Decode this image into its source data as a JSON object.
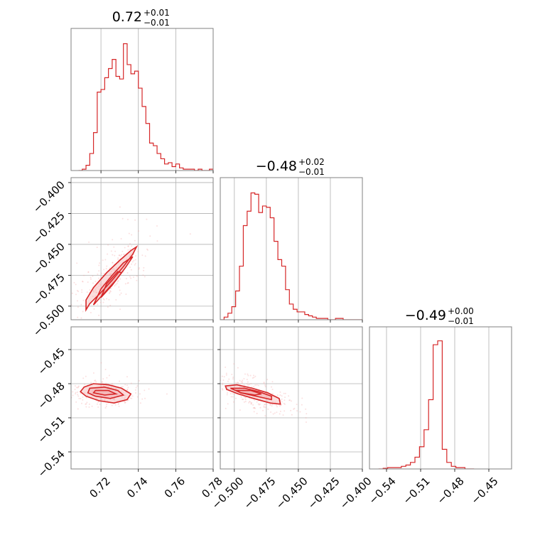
{
  "figure": {
    "type": "corner-plot",
    "colors": {
      "series": "#d62728",
      "contour_fill": "#f3b3b4",
      "scatter": "#f4a6a7",
      "grid": "#b0b0b0",
      "frame": "#808080"
    },
    "panels": {
      "p1": {
        "title_value": "0.72",
        "title_upper": "+0.01",
        "title_lower": "−0.01"
      },
      "p2": {
        "title_value": "−0.48",
        "title_upper": "+0.02",
        "title_lower": "−0.01"
      },
      "p3": {
        "title_value": "−0.49",
        "title_upper": "+0.00",
        "title_lower": "−0.01"
      }
    }
  },
  "chart_data": [
    {
      "type": "histogram",
      "panel": "p1",
      "x_ticks": [
        0.72,
        0.74,
        0.76,
        0.78
      ],
      "xlim": [
        0.704,
        0.78
      ],
      "grid": true,
      "bins": [
        0.708,
        0.71,
        0.712,
        0.714,
        0.716,
        0.718,
        0.72,
        0.722,
        0.724,
        0.726,
        0.728,
        0.73,
        0.732,
        0.734,
        0.736,
        0.738,
        0.74,
        0.742,
        0.744,
        0.746,
        0.748,
        0.75,
        0.752,
        0.754,
        0.756,
        0.758,
        0.76,
        0.762,
        0.764,
        0.766,
        0.768,
        0.77,
        0.772,
        0.774,
        0.776,
        0.778,
        0.78
      ],
      "counts": [
        0,
        0.01,
        0.04,
        0.13,
        0.29,
        0.6,
        0.62,
        0.71,
        0.78,
        0.85,
        0.72,
        0.7,
        0.97,
        0.81,
        0.74,
        0.76,
        0.63,
        0.49,
        0.36,
        0.21,
        0.19,
        0.13,
        0.09,
        0.05,
        0.06,
        0.03,
        0.05,
        0.02,
        0.01,
        0.01,
        0.01,
        0.0,
        0.01,
        0.0,
        0.0,
        0.01,
        0.0
      ]
    },
    {
      "type": "histogram",
      "panel": "p2",
      "x_ticks": [
        -0.5,
        -0.475,
        -0.45,
        -0.425,
        -0.4
      ],
      "x_tick_labels": [
        "−0.500",
        "−0.475",
        "−0.450",
        "−0.425",
        "−0.400"
      ],
      "xlim": [
        -0.511,
        -0.4
      ],
      "grid": true,
      "bins": [
        -0.511,
        -0.508,
        -0.505,
        -0.502,
        -0.499,
        -0.496,
        -0.493,
        -0.49,
        -0.487,
        -0.484,
        -0.481,
        -0.478,
        -0.475,
        -0.472,
        -0.469,
        -0.466,
        -0.463,
        -0.46,
        -0.457,
        -0.454,
        -0.451,
        -0.448,
        -0.445,
        -0.442,
        -0.439,
        -0.436,
        -0.433,
        -0.43,
        -0.427,
        -0.424,
        -0.421,
        -0.418,
        -0.415,
        -0.412,
        -0.409,
        -0.406,
        -0.403,
        -0.4
      ],
      "counts": [
        0,
        0.02,
        0.05,
        0.1,
        0.22,
        0.41,
        0.72,
        0.83,
        0.97,
        0.96,
        0.82,
        0.87,
        0.86,
        0.78,
        0.6,
        0.46,
        0.41,
        0.23,
        0.12,
        0.08,
        0.06,
        0.06,
        0.04,
        0.03,
        0.02,
        0.01,
        0.01,
        0.01,
        0.0,
        0.0,
        0.01,
        0.01,
        0.0,
        0.0,
        0.0,
        0.0,
        0.0
      ]
    },
    {
      "type": "histogram",
      "panel": "p3",
      "x_ticks": [
        -0.54,
        -0.51,
        -0.48,
        -0.45
      ],
      "x_tick_labels": [
        "−0.54",
        "−0.51",
        "−0.48",
        "−0.45"
      ],
      "xlim": [
        -0.555,
        -0.43
      ],
      "grid": true,
      "bins": [
        -0.547,
        -0.543,
        -0.539,
        -0.535,
        -0.531,
        -0.527,
        -0.523,
        -0.519,
        -0.515,
        -0.511,
        -0.507,
        -0.503,
        -0.499,
        -0.495,
        -0.491,
        -0.487,
        -0.483,
        -0.479,
        -0.475,
        -0.471,
        -0.467,
        -0.463
      ],
      "counts": [
        0,
        0.005,
        0.01,
        0.01,
        0.01,
        0.02,
        0.03,
        0.05,
        0.09,
        0.17,
        0.3,
        0.53,
        0.95,
        0.98,
        0.15,
        0.05,
        0.02,
        0.01,
        0.01,
        0.0,
        0.0,
        0.0
      ]
    },
    {
      "type": "contour",
      "panel": "p21",
      "x_ticks": [
        0.72,
        0.74,
        0.76,
        0.78
      ],
      "y_ticks": [
        -0.4,
        -0.425,
        -0.45,
        -0.475,
        -0.5
      ],
      "y_tick_labels": [
        "−0.400",
        "−0.425",
        "−0.450",
        "−0.475",
        "−0.500"
      ],
      "xlim": [
        0.704,
        0.78
      ],
      "ylim": [
        -0.511,
        -0.396
      ],
      "grid": true,
      "center": [
        0.727,
        -0.48
      ],
      "contours": [
        [
          [
            0.712,
            -0.503
          ],
          [
            0.714,
            -0.498
          ],
          [
            0.72,
            -0.489
          ],
          [
            0.726,
            -0.479
          ],
          [
            0.732,
            -0.468
          ],
          [
            0.737,
            -0.458
          ],
          [
            0.739,
            -0.452
          ],
          [
            0.736,
            -0.455
          ],
          [
            0.73,
            -0.463
          ],
          [
            0.723,
            -0.473
          ],
          [
            0.716,
            -0.485
          ],
          [
            0.712,
            -0.495
          ]
        ],
        [
          [
            0.716,
            -0.499
          ],
          [
            0.722,
            -0.489
          ],
          [
            0.728,
            -0.479
          ],
          [
            0.733,
            -0.469
          ],
          [
            0.737,
            -0.46
          ],
          [
            0.732,
            -0.465
          ],
          [
            0.726,
            -0.475
          ],
          [
            0.72,
            -0.486
          ]
        ],
        [
          [
            0.72,
            -0.493
          ],
          [
            0.726,
            -0.483
          ],
          [
            0.731,
            -0.473
          ],
          [
            0.729,
            -0.472
          ],
          [
            0.723,
            -0.482
          ]
        ]
      ]
    },
    {
      "type": "contour",
      "panel": "p31",
      "x_ticks": [
        0.72,
        0.74,
        0.76,
        0.78
      ],
      "x_tick_labels": [
        "0.72",
        "0.74",
        "0.76",
        "0.78"
      ],
      "y_ticks": [
        -0.45,
        -0.48,
        -0.51,
        -0.54
      ],
      "y_tick_labels": [
        "−0.45",
        "−0.48",
        "−0.51",
        "−0.54"
      ],
      "xlim": [
        0.704,
        0.78
      ],
      "ylim": [
        -0.555,
        -0.43
      ],
      "grid": true,
      "center": [
        0.722,
        -0.488
      ],
      "contours": [
        [
          [
            0.711,
            -0.483
          ],
          [
            0.716,
            -0.48
          ],
          [
            0.724,
            -0.481
          ],
          [
            0.731,
            -0.484
          ],
          [
            0.736,
            -0.489
          ],
          [
            0.734,
            -0.494
          ],
          [
            0.727,
            -0.497
          ],
          [
            0.719,
            -0.495
          ],
          [
            0.712,
            -0.491
          ],
          [
            0.709,
            -0.487
          ]
        ],
        [
          [
            0.714,
            -0.484
          ],
          [
            0.722,
            -0.483
          ],
          [
            0.729,
            -0.486
          ],
          [
            0.732,
            -0.49
          ],
          [
            0.725,
            -0.493
          ],
          [
            0.717,
            -0.491
          ],
          [
            0.713,
            -0.488
          ]
        ],
        [
          [
            0.717,
            -0.486
          ],
          [
            0.724,
            -0.486
          ],
          [
            0.728,
            -0.489
          ],
          [
            0.722,
            -0.49
          ],
          [
            0.716,
            -0.488
          ]
        ]
      ]
    },
    {
      "type": "contour",
      "panel": "p32",
      "x_ticks": [
        -0.5,
        -0.475,
        -0.45,
        -0.425,
        -0.4
      ],
      "x_tick_labels": [
        "−0.500",
        "−0.475",
        "−0.450",
        "−0.425",
        "−0.400"
      ],
      "y_ticks": [
        -0.45,
        -0.48,
        -0.51,
        -0.54
      ],
      "xlim": [
        -0.511,
        -0.4
      ],
      "ylim": [
        -0.555,
        -0.43
      ],
      "grid": true,
      "center": [
        -0.487,
        -0.489
      ],
      "contours": [
        [
          [
            -0.507,
            -0.482
          ],
          [
            -0.498,
            -0.481
          ],
          [
            -0.486,
            -0.484
          ],
          [
            -0.474,
            -0.488
          ],
          [
            -0.465,
            -0.493
          ],
          [
            -0.464,
            -0.498
          ],
          [
            -0.472,
            -0.497
          ],
          [
            -0.485,
            -0.493
          ],
          [
            -0.497,
            -0.489
          ],
          [
            -0.506,
            -0.485
          ]
        ],
        [
          [
            -0.503,
            -0.484
          ],
          [
            -0.492,
            -0.484
          ],
          [
            -0.481,
            -0.487
          ],
          [
            -0.471,
            -0.491
          ],
          [
            -0.471,
            -0.494
          ],
          [
            -0.483,
            -0.491
          ],
          [
            -0.495,
            -0.488
          ]
        ],
        [
          [
            -0.498,
            -0.486
          ],
          [
            -0.487,
            -0.486
          ],
          [
            -0.479,
            -0.489
          ],
          [
            -0.484,
            -0.49
          ],
          [
            -0.495,
            -0.488
          ]
        ]
      ]
    }
  ]
}
